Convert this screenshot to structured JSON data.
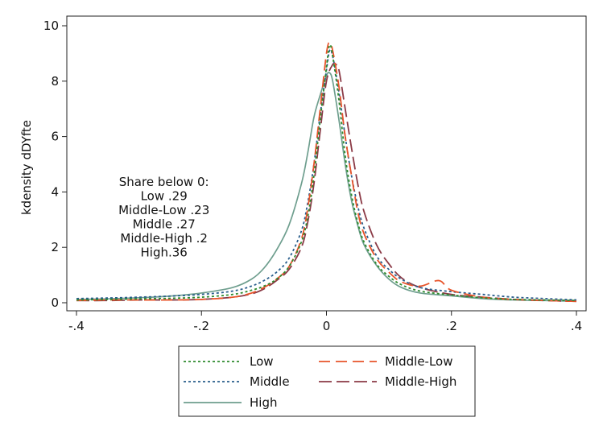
{
  "chart_data": {
    "type": "line",
    "title": "",
    "xlabel": "",
    "ylabel": "kdensity dDYfte",
    "xlim": [
      -0.4,
      0.4
    ],
    "ylim": [
      0,
      10
    ],
    "x_ticks": [
      {
        "value": -0.4,
        "label": "-.4"
      },
      {
        "value": -0.2,
        "label": "-.2"
      },
      {
        "value": 0,
        "label": "0"
      },
      {
        "value": 0.2,
        "label": ".2"
      },
      {
        "value": 0.4,
        "label": ".4"
      }
    ],
    "y_ticks": [
      {
        "value": 0,
        "label": "0"
      },
      {
        "value": 2,
        "label": "2"
      },
      {
        "value": 4,
        "label": "4"
      },
      {
        "value": 6,
        "label": "6"
      },
      {
        "value": 8,
        "label": "8"
      },
      {
        "value": 10,
        "label": "10"
      }
    ],
    "grid": false,
    "legend_position": "bottom",
    "annotation": [
      "Share below 0:",
      "Low .29",
      "Middle-Low .23",
      "Middle .27",
      "Middle-High .2",
      "High.36"
    ],
    "series": [
      {
        "name": "Low",
        "color": "#2e8b2e",
        "dash": "3,3",
        "x": [
          -0.4,
          -0.35,
          -0.3,
          -0.25,
          -0.2,
          -0.15,
          -0.12,
          -0.1,
          -0.08,
          -0.06,
          -0.04,
          -0.03,
          -0.02,
          -0.01,
          0,
          0.005,
          0.01,
          0.02,
          0.03,
          0.04,
          0.05,
          0.06,
          0.08,
          0.1,
          0.12,
          0.15,
          0.2,
          0.25,
          0.3,
          0.35,
          0.4
        ],
        "y": [
          0.1,
          0.12,
          0.14,
          0.16,
          0.2,
          0.3,
          0.45,
          0.6,
          0.85,
          1.3,
          2.2,
          3.1,
          4.6,
          6.6,
          8.5,
          9.3,
          8.9,
          7.3,
          5.3,
          3.9,
          2.9,
          2.2,
          1.4,
          0.95,
          0.65,
          0.42,
          0.28,
          0.18,
          0.12,
          0.1,
          0.08
        ]
      },
      {
        "name": "Middle-Low",
        "color": "#e8542a",
        "dash": "14,7",
        "x": [
          -0.4,
          -0.35,
          -0.3,
          -0.25,
          -0.2,
          -0.15,
          -0.12,
          -0.1,
          -0.08,
          -0.06,
          -0.04,
          -0.03,
          -0.02,
          -0.01,
          0,
          0.005,
          0.01,
          0.02,
          0.03,
          0.04,
          0.05,
          0.06,
          0.08,
          0.1,
          0.12,
          0.15,
          0.18,
          0.2,
          0.25,
          0.3,
          0.35,
          0.4
        ],
        "y": [
          0.08,
          0.1,
          0.1,
          0.1,
          0.12,
          0.2,
          0.35,
          0.55,
          0.85,
          1.3,
          2.3,
          3.4,
          5.0,
          7.0,
          9.0,
          9.4,
          9.1,
          7.8,
          6.0,
          4.6,
          3.3,
          2.5,
          1.6,
          1.1,
          0.75,
          0.6,
          0.8,
          0.45,
          0.2,
          0.12,
          0.08,
          0.05
        ]
      },
      {
        "name": "Middle",
        "color": "#2a5e8c",
        "dash": "3,3",
        "x": [
          -0.4,
          -0.35,
          -0.3,
          -0.25,
          -0.2,
          -0.15,
          -0.12,
          -0.1,
          -0.08,
          -0.06,
          -0.04,
          -0.03,
          -0.02,
          -0.01,
          0,
          0.005,
          0.01,
          0.02,
          0.03,
          0.04,
          0.05,
          0.06,
          0.08,
          0.1,
          0.12,
          0.15,
          0.2,
          0.25,
          0.3,
          0.35,
          0.4
        ],
        "y": [
          0.15,
          0.17,
          0.2,
          0.24,
          0.3,
          0.42,
          0.6,
          0.8,
          1.1,
          1.6,
          2.6,
          3.6,
          5.0,
          6.8,
          8.4,
          9.1,
          8.9,
          7.6,
          6.0,
          4.6,
          3.5,
          2.7,
          1.7,
          1.2,
          0.85,
          0.55,
          0.4,
          0.3,
          0.2,
          0.15,
          0.1
        ]
      },
      {
        "name": "Middle-High",
        "color": "#8b3a46",
        "dash": "16,6",
        "x": [
          -0.4,
          -0.35,
          -0.3,
          -0.25,
          -0.2,
          -0.15,
          -0.12,
          -0.1,
          -0.08,
          -0.06,
          -0.04,
          -0.03,
          -0.02,
          -0.01,
          0,
          0.01,
          0.015,
          0.02,
          0.03,
          0.04,
          0.05,
          0.06,
          0.08,
          0.1,
          0.12,
          0.15,
          0.2,
          0.25,
          0.3,
          0.35,
          0.4
        ],
        "y": [
          0.08,
          0.08,
          0.1,
          0.1,
          0.12,
          0.2,
          0.32,
          0.5,
          0.8,
          1.2,
          2.0,
          2.9,
          4.3,
          6.2,
          8.0,
          8.6,
          8.6,
          8.4,
          7.0,
          5.6,
          4.3,
          3.3,
          2.1,
          1.4,
          0.9,
          0.55,
          0.3,
          0.2,
          0.12,
          0.08,
          0.05
        ]
      },
      {
        "name": "High",
        "color": "#6e9e8e",
        "dash": "",
        "x": [
          -0.4,
          -0.35,
          -0.3,
          -0.25,
          -0.2,
          -0.15,
          -0.12,
          -0.1,
          -0.08,
          -0.06,
          -0.04,
          -0.03,
          -0.02,
          -0.01,
          0,
          0.005,
          0.01,
          0.02,
          0.03,
          0.04,
          0.05,
          0.06,
          0.08,
          0.1,
          0.12,
          0.15,
          0.2,
          0.25,
          0.3,
          0.35,
          0.4
        ],
        "y": [
          0.12,
          0.14,
          0.18,
          0.24,
          0.35,
          0.55,
          0.85,
          1.25,
          1.9,
          2.8,
          4.3,
          5.4,
          6.7,
          7.5,
          8.2,
          8.3,
          8.0,
          6.6,
          5.0,
          3.7,
          2.8,
          2.1,
          1.35,
          0.85,
          0.55,
          0.35,
          0.25,
          0.15,
          0.1,
          0.08,
          0.05
        ]
      }
    ]
  }
}
